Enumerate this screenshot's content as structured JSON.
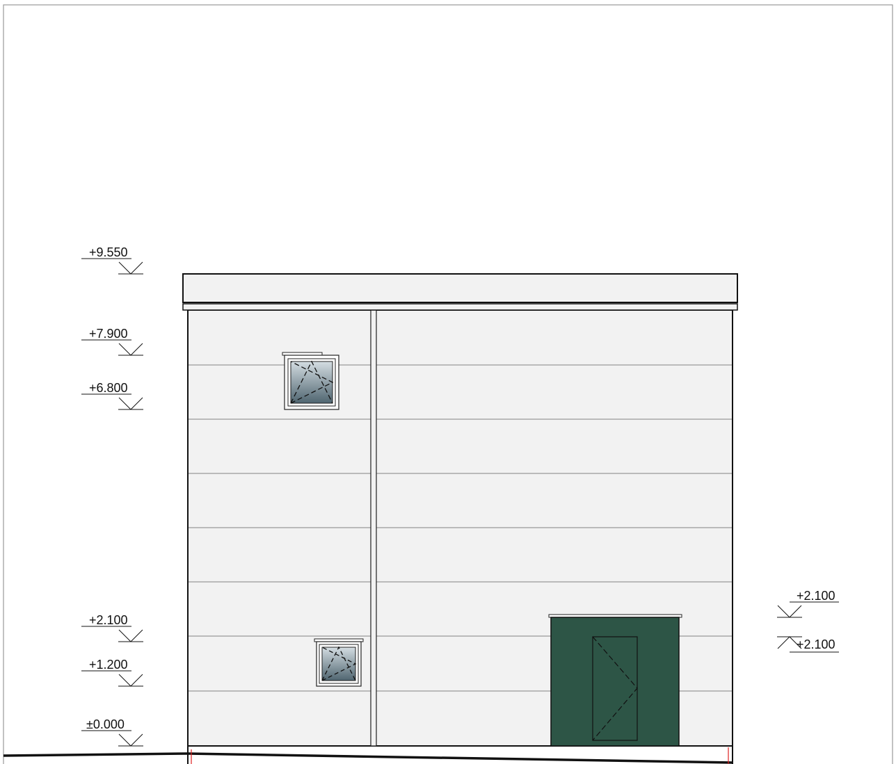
{
  "drawing": {
    "type": "building elevation",
    "colors": {
      "facade": "#f2f2f2",
      "panel_joint": "#a8a8a8",
      "outline": "#111111",
      "door": "#2d5546",
      "glass_top": "#d4dde2",
      "glass_bottom": "#4f6570",
      "grid_mark": "#e02020"
    }
  },
  "levels_left": [
    {
      "label": "+9.550",
      "direction": "down"
    },
    {
      "label": "+7.900",
      "direction": "down"
    },
    {
      "label": "+6.800",
      "direction": "down"
    },
    {
      "label": "+2.100",
      "direction": "down"
    },
    {
      "label": "+1.200",
      "direction": "down"
    },
    {
      "label": "±0.000",
      "direction": "down"
    }
  ],
  "levels_right": [
    {
      "label": "+2.100",
      "direction": "down"
    },
    {
      "label": "+2.100",
      "direction": "up"
    }
  ],
  "elements": {
    "upper_window": {
      "type": "tilt-turn window"
    },
    "lower_window": {
      "type": "tilt-turn window"
    },
    "entrance_door": {
      "type": "door with glazed sidelight"
    }
  }
}
